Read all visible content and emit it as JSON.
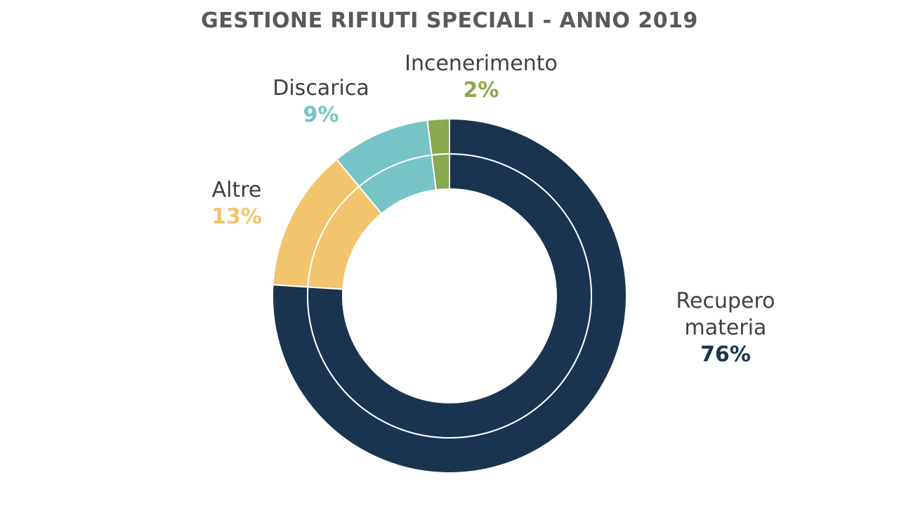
{
  "chart_data": {
    "type": "pie",
    "title": "GESTIONE RIFIUTI SPECIALI - ANNO 2019",
    "slices": [
      {
        "label": "Recupero materia",
        "value": 76,
        "display": "76%",
        "color": "#1a3450"
      },
      {
        "label": "Altre",
        "value": 13,
        "display": "13%",
        "color": "#f2c46d"
      },
      {
        "label": "Discarica",
        "value": 9,
        "display": "9%",
        "color": "#76c4c6"
      },
      {
        "label": "Incenerimento",
        "value": 2,
        "display": "2%",
        "color": "#8aa84e"
      }
    ]
  }
}
